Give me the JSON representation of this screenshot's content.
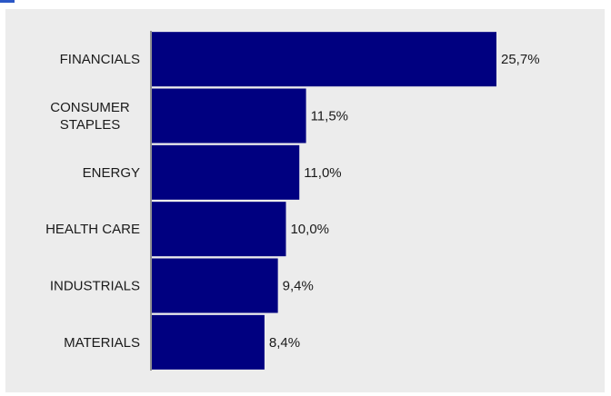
{
  "colors": {
    "bar": "#000080",
    "panel": "#ececec",
    "axis": "#333333",
    "accent_mark": "#2b57c6"
  },
  "chart_data": {
    "type": "bar",
    "orientation": "horizontal",
    "categories": [
      "FINANCIALS",
      "CONSUMER STAPLES",
      "ENERGY",
      "HEALTH CARE",
      "INDUSTRIALS",
      "MATERIALS"
    ],
    "category_label_lines": [
      [
        "FINANCIALS"
      ],
      [
        "CONSUMER",
        "STAPLES"
      ],
      [
        "ENERGY"
      ],
      [
        "HEALTH CARE"
      ],
      [
        "INDUSTRIALS"
      ],
      [
        "MATERIALS"
      ]
    ],
    "values": [
      25.7,
      11.5,
      11.0,
      10.0,
      9.4,
      8.4
    ],
    "data_labels": [
      "25,7%",
      "11,5%",
      "11,0%",
      "10,0%",
      "9,4%",
      "8,4%"
    ],
    "xlim": [
      0,
      28
    ],
    "grid": false,
    "legend": "none"
  }
}
